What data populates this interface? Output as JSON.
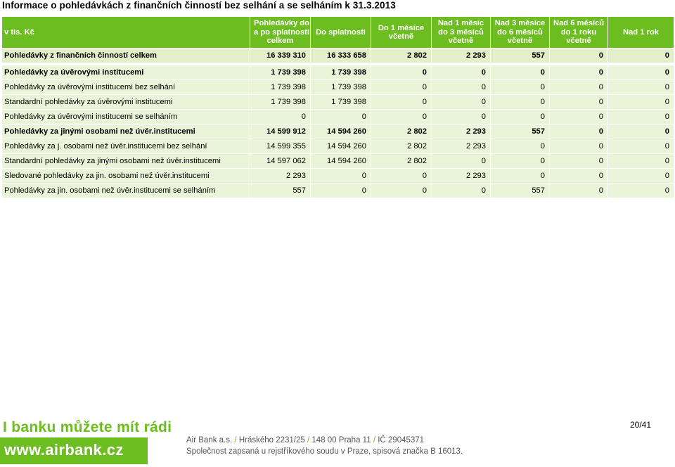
{
  "title": "Informace o pohledávkách z finančních činností bez selhání a se selháním k 31.3.2013",
  "table": {
    "header": [
      [
        "v tis. Kč"
      ],
      [
        "Pohledávky do",
        "a po splatnosti",
        "celkem"
      ],
      [
        "Do splatnosti"
      ],
      [
        "Do 1 měsíce",
        "včetně"
      ],
      [
        "Nad 1 měsíc",
        "do 3 měsíců",
        "včetně"
      ],
      [
        "Nad 3 měsíce",
        "do 6 měsíců",
        "včetně"
      ],
      [
        "Nad 6 měsíců",
        "do 1 roku",
        "včetně"
      ],
      [
        "Nad 1 rok"
      ]
    ],
    "rows": [
      [
        "Pohledávky z finančních činností celkem",
        "16 339 310",
        "16 333 658",
        "2 802",
        "2 293",
        "557",
        "0",
        "0"
      ],
      [
        "Pohledávky za úvěrovými institucemi",
        "1 739 398",
        "1 739 398",
        "0",
        "0",
        "0",
        "0",
        "0"
      ],
      [
        "Pohledávky za úvěrovými institucemi bez selhání",
        "1 739 398",
        "1 739 398",
        "0",
        "0",
        "0",
        "0",
        "0"
      ],
      [
        "Standardní pohledávky za úvěrovými institucemi",
        "1 739 398",
        "1 739 398",
        "0",
        "0",
        "0",
        "0",
        "0"
      ],
      [
        "Pohledávky za úvěrovými institucemi se selháním",
        "0",
        "0",
        "0",
        "0",
        "0",
        "0",
        "0"
      ],
      [
        "Pohledávky za jinými osobami než úvěr.institucemi",
        "14 599 912",
        "14 594 260",
        "2 802",
        "2 293",
        "557",
        "0",
        "0"
      ],
      [
        "Pohledávky za j. osobami než úvěr.institucemi bez selhání",
        "14 599 355",
        "14 594 260",
        "2 802",
        "2 293",
        "0",
        "0",
        "0"
      ],
      [
        "Standardní pohledávky za jinými osobami než úvěr.institucemi",
        "14 597 062",
        "14 594 260",
        "2 802",
        "0",
        "0",
        "0",
        "0"
      ],
      [
        "Sledované pohledávky za jin. osobami než úvěr.institucemi",
        "2 293",
        "0",
        "0",
        "2 293",
        "0",
        "0",
        "0"
      ],
      [
        "Pohledávky za jin. osobami než úvěr.institucemi se selháním",
        "557",
        "0",
        "0",
        "0",
        "557",
        "0",
        "0"
      ]
    ]
  },
  "footer": {
    "slogan": "I banku můžete mít rádi",
    "url": "www.airbank.cz",
    "company": "Air Bank a.s.",
    "address": "Hráského 2231/25",
    "city": "148 00 Praha 11",
    "ico": "IČ 29045371",
    "registry": "Společnost zapsaná u rejstříkového soudu v Praze, spisová značka B 16013.",
    "slash": "/",
    "page": "20/41"
  },
  "colors": {
    "brand_green": "#6cbd1f",
    "row_light": "#eaf4d9",
    "row_highlight": "#e2efc8"
  }
}
